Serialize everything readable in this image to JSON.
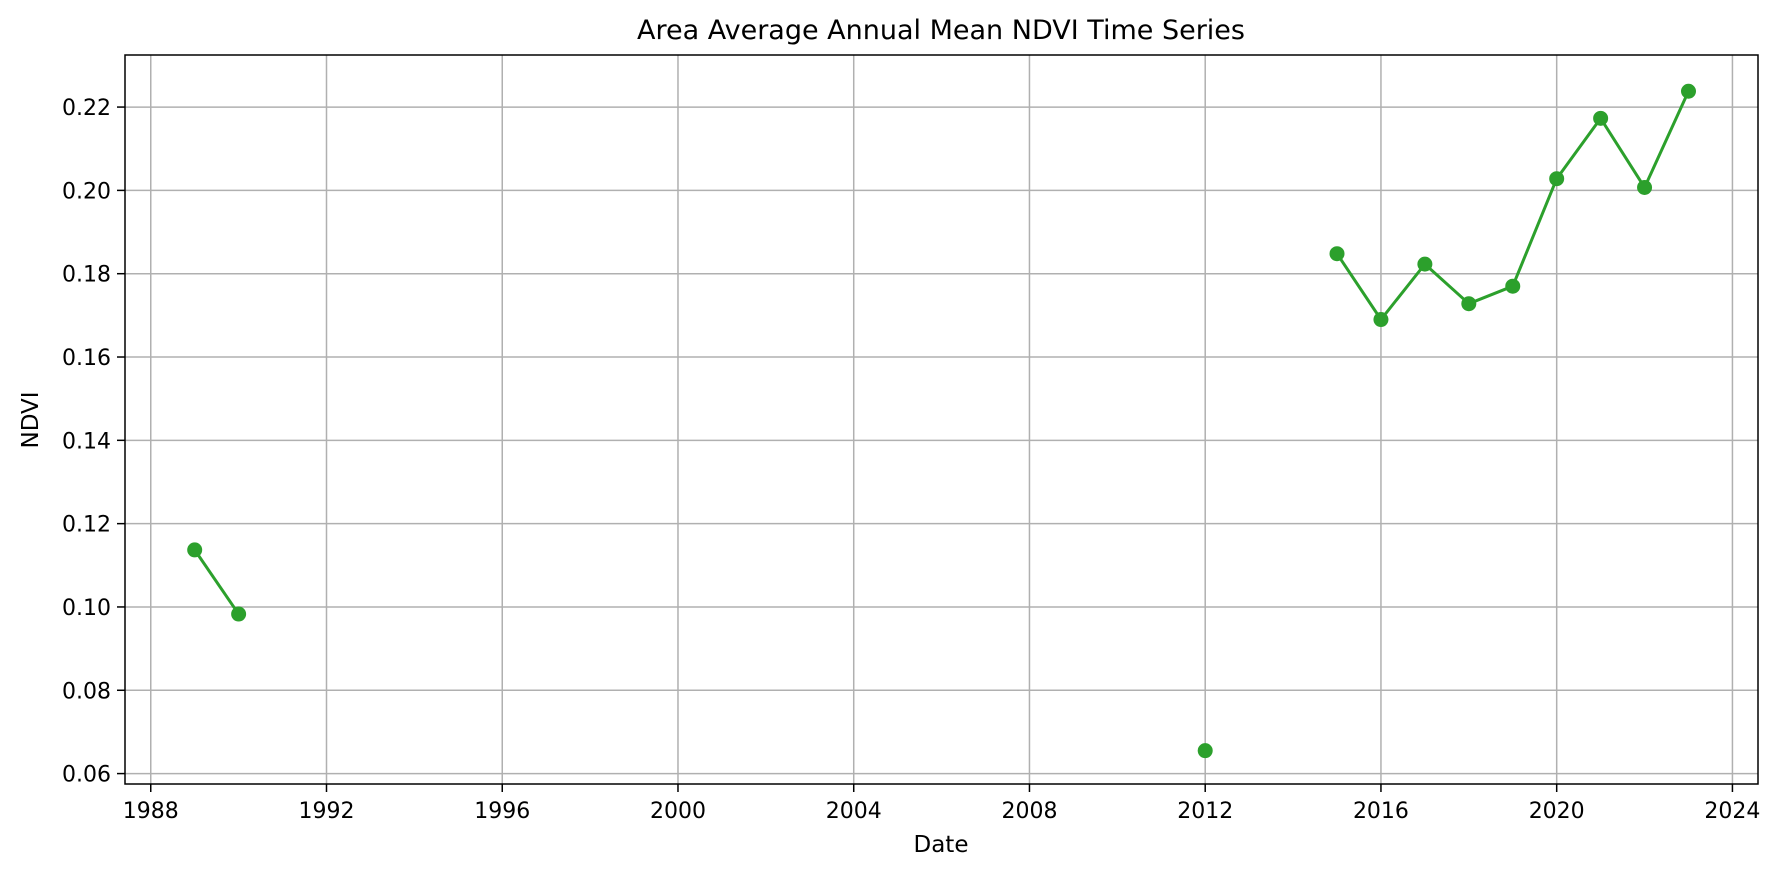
{
  "chart_data": {
    "type": "line",
    "title": "Area Average Annual Mean NDVI Time Series",
    "xlabel": "Date",
    "ylabel": "NDVI",
    "x_ticks": [
      "1988",
      "1992",
      "1996",
      "2000",
      "2004",
      "2008",
      "2012",
      "2016",
      "2020",
      "2024"
    ],
    "y_ticks": [
      "0.06",
      "0.08",
      "0.10",
      "0.12",
      "0.14",
      "0.16",
      "0.18",
      "0.20",
      "0.22"
    ],
    "xlim": [
      "1987-06-01",
      "2024-08-01"
    ],
    "ylim": [
      0.0575,
      0.2325
    ],
    "grid": true,
    "legend": "none",
    "series": [
      {
        "color": "#2ca02c",
        "marker": "circle",
        "points": [
          {
            "x": "1989-01-01",
            "y": 0.1137
          },
          {
            "x": "1990-01-01",
            "y": 0.0983
          },
          {
            "x": "2012-01-01",
            "y": 0.0655
          },
          {
            "x": "2015-01-01",
            "y": 0.1848
          },
          {
            "x": "2016-01-01",
            "y": 0.169
          },
          {
            "x": "2017-01-01",
            "y": 0.1823
          },
          {
            "x": "2018-01-01",
            "y": 0.1728
          },
          {
            "x": "2019-01-01",
            "y": 0.177
          },
          {
            "x": "2020-01-01",
            "y": 0.2028
          },
          {
            "x": "2021-01-01",
            "y": 0.2173
          },
          {
            "x": "2022-01-01",
            "y": 0.2007
          },
          {
            "x": "2023-01-01",
            "y": 0.2238
          }
        ]
      }
    ]
  }
}
